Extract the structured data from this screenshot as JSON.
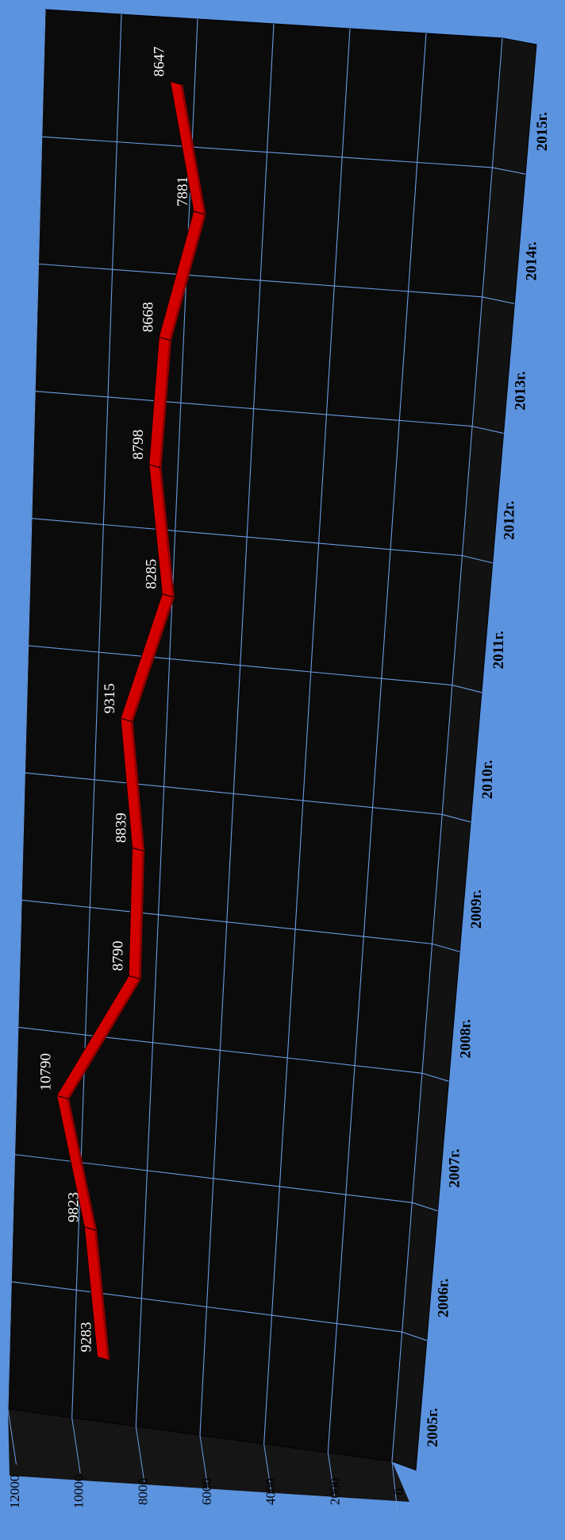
{
  "chart_data": {
    "type": "line",
    "style": "3d-ribbon",
    "orientation": "rotated-90-ccw",
    "categories": [
      "2005г.",
      "2006г.",
      "2007г.",
      "2008г.",
      "2009г.",
      "2010г.",
      "2011г.",
      "2012г.",
      "2013г.",
      "2014г.",
      "2015г."
    ],
    "values": [
      9283,
      9823,
      10790,
      8790,
      8839,
      9315,
      8285,
      8798,
      8668,
      7881,
      8647
    ],
    "data_labels": [
      "9283",
      "9823",
      "10790",
      "8790",
      "8839",
      "9315",
      "8285",
      "8798",
      "8668",
      "7881",
      "8647"
    ],
    "yticks": [
      "0",
      "2000",
      "4000",
      "6000",
      "8000",
      "10000",
      "12000"
    ],
    "ylim": [
      0,
      12000
    ],
    "grid": true,
    "colors": {
      "background": "#5b93df",
      "plot_wall": "#0b0b0b",
      "plot_floor": "#121212",
      "grid": "#6a9be0",
      "ribbon": "#d40000",
      "ribbon_side": "#8e0000",
      "ribbon_edge": "#1a0000",
      "data_label": "#ffffff",
      "axis_text": "#000000"
    }
  }
}
